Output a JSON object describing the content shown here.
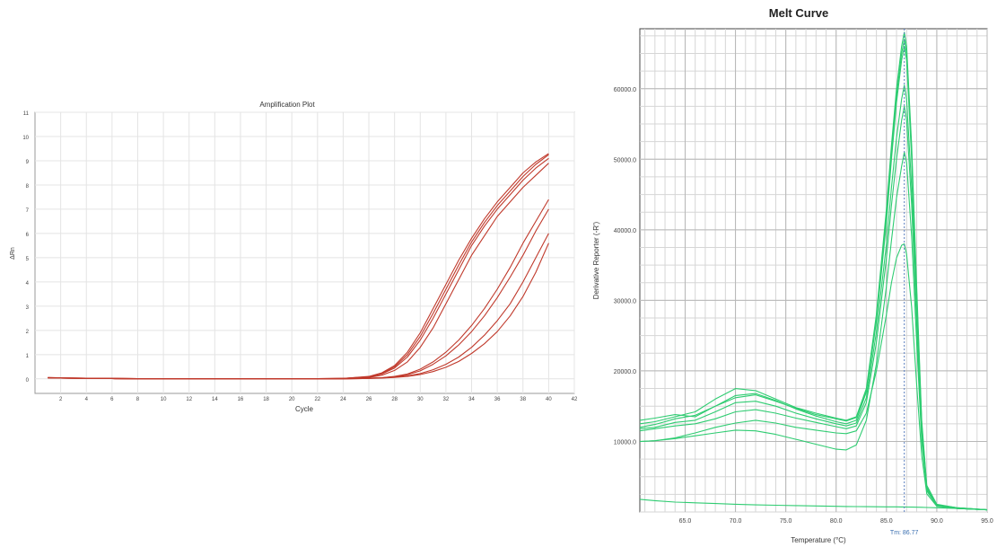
{
  "chart_data": [
    {
      "type": "line",
      "title": "Amplification Plot",
      "xlabel": "Cycle",
      "ylabel": "ΔRn",
      "xlim": [
        0,
        42
      ],
      "ylim": [
        -0.6,
        11
      ],
      "xticks": [
        2,
        4,
        6,
        8,
        10,
        12,
        14,
        16,
        18,
        20,
        22,
        24,
        26,
        28,
        30,
        32,
        34,
        36,
        38,
        40,
        42
      ],
      "yticks": [
        0,
        1,
        2,
        3,
        4,
        5,
        6,
        7,
        8,
        9,
        10,
        11
      ],
      "grid": true,
      "line_color": "#c0392b",
      "x": [
        1,
        2,
        4,
        6,
        8,
        10,
        12,
        14,
        16,
        18,
        20,
        22,
        24,
        26,
        27,
        28,
        29,
        30,
        31,
        32,
        33,
        34,
        35,
        36,
        37,
        38,
        39,
        40
      ],
      "series": [
        {
          "values": [
            0.05,
            0.04,
            0.03,
            0.02,
            0.01,
            0.0,
            0.0,
            0.0,
            0.0,
            0.0,
            0.0,
            0.01,
            0.02,
            0.1,
            0.25,
            0.55,
            1.1,
            1.9,
            2.9,
            3.9,
            4.9,
            5.8,
            6.6,
            7.3,
            7.9,
            8.5,
            8.95,
            9.3
          ]
        },
        {
          "values": [
            0.06,
            0.04,
            0.03,
            0.02,
            0.01,
            0.0,
            0.0,
            0.0,
            0.0,
            0.0,
            0.0,
            0.01,
            0.02,
            0.08,
            0.2,
            0.45,
            0.9,
            1.6,
            2.5,
            3.5,
            4.5,
            5.5,
            6.3,
            7.0,
            7.6,
            8.2,
            8.7,
            9.1
          ]
        },
        {
          "values": [
            0.04,
            0.03,
            0.02,
            0.02,
            0.01,
            0.0,
            0.0,
            0.0,
            0.0,
            0.0,
            0.0,
            0.0,
            0.02,
            0.06,
            0.15,
            0.35,
            0.7,
            1.3,
            2.1,
            3.1,
            4.1,
            5.1,
            5.9,
            6.7,
            7.3,
            7.9,
            8.4,
            8.9
          ]
        },
        {
          "values": [
            0.05,
            0.04,
            0.03,
            0.02,
            0.01,
            0.0,
            0.0,
            0.0,
            0.0,
            0.0,
            0.0,
            0.01,
            0.02,
            0.09,
            0.22,
            0.5,
            1.0,
            1.75,
            2.7,
            3.7,
            4.7,
            5.65,
            6.45,
            7.15,
            7.75,
            8.35,
            8.85,
            9.25
          ]
        },
        {
          "values": [
            0.05,
            0.03,
            0.02,
            0.01,
            0.0,
            0.0,
            0.0,
            0.0,
            0.0,
            0.0,
            0.0,
            0.0,
            0.01,
            0.03,
            0.05,
            0.1,
            0.2,
            0.4,
            0.7,
            1.1,
            1.6,
            2.2,
            2.9,
            3.7,
            4.6,
            5.6,
            6.5,
            7.4
          ]
        },
        {
          "values": [
            0.05,
            0.03,
            0.02,
            0.01,
            0.0,
            0.0,
            0.0,
            0.0,
            0.0,
            0.0,
            0.0,
            0.0,
            0.01,
            0.03,
            0.05,
            0.09,
            0.17,
            0.33,
            0.6,
            0.95,
            1.4,
            1.95,
            2.6,
            3.35,
            4.2,
            5.1,
            6.1,
            7.0
          ]
        },
        {
          "values": [
            0.04,
            0.03,
            0.02,
            0.01,
            0.0,
            0.0,
            0.0,
            0.0,
            0.0,
            0.0,
            0.0,
            0.0,
            0.0,
            0.02,
            0.04,
            0.07,
            0.12,
            0.22,
            0.38,
            0.6,
            0.9,
            1.3,
            1.8,
            2.4,
            3.1,
            4.0,
            5.0,
            6.0
          ]
        },
        {
          "values": [
            0.04,
            0.03,
            0.02,
            0.01,
            0.0,
            0.0,
            0.0,
            0.0,
            0.0,
            0.0,
            0.0,
            0.0,
            0.0,
            0.02,
            0.03,
            0.06,
            0.1,
            0.18,
            0.3,
            0.48,
            0.72,
            1.05,
            1.45,
            1.95,
            2.6,
            3.4,
            4.4,
            5.6
          ]
        }
      ]
    },
    {
      "type": "line",
      "title": "Melt Curve",
      "xlabel": "Temperature (°C)",
      "ylabel": "Derivative Reporter (-R')",
      "xlim": [
        60.5,
        95
      ],
      "ylim": [
        0,
        68500
      ],
      "xticks": [
        65,
        70,
        75,
        80,
        85,
        90,
        95
      ],
      "xtick_labels": [
        "65.0",
        "70.0",
        "75.0",
        "80.0",
        "85.0",
        "90.0",
        "95.0"
      ],
      "yticks": [
        10000,
        20000,
        30000,
        40000,
        50000,
        60000
      ],
      "ytick_labels": [
        "10000.0",
        "20000.0",
        "30000.0",
        "40000.0",
        "50000.0",
        "60000.0"
      ],
      "grid": true,
      "line_color": "#2ecc71",
      "tm_label": "Tm: 86.77",
      "tm_value": 86.77,
      "x": [
        60.5,
        62,
        64,
        66,
        68,
        70,
        72,
        74,
        76,
        78,
        80,
        81,
        82,
        83,
        84,
        85,
        85.5,
        86,
        86.5,
        86.77,
        87,
        87.5,
        88,
        88.5,
        89,
        90,
        92,
        95
      ],
      "series": [
        {
          "values": [
            12000,
            12400,
            13200,
            13700,
            15000,
            16500,
            16800,
            15800,
            14600,
            13600,
            12800,
            12500,
            13000,
            17000,
            27000,
            41000,
            50000,
            58000,
            64000,
            66000,
            64000,
            50000,
            30000,
            12000,
            3500,
            1000,
            600,
            300
          ]
        },
        {
          "values": [
            12500,
            12800,
            13500,
            14200,
            16000,
            17500,
            17200,
            16000,
            14800,
            14000,
            13300,
            13000,
            13500,
            17500,
            28000,
            43000,
            52000,
            60000,
            66000,
            68000,
            66000,
            52000,
            32000,
            13000,
            3800,
            1100,
            600,
            300
          ]
        },
        {
          "values": [
            13000,
            13300,
            13800,
            13500,
            15000,
            16200,
            16600,
            15700,
            14700,
            13800,
            13200,
            12900,
            13400,
            17200,
            27500,
            42000,
            51000,
            59000,
            65000,
            67000,
            65000,
            51000,
            31000,
            12500,
            3600,
            1000,
            600,
            300
          ]
        },
        {
          "values": [
            11800,
            12000,
            12700,
            13000,
            14200,
            15500,
            15700,
            15000,
            14000,
            13200,
            12500,
            12200,
            12600,
            16200,
            25500,
            38000,
            46000,
            53000,
            58500,
            60500,
            58500,
            46000,
            28000,
            11500,
            3300,
            900,
            500,
            300
          ]
        },
        {
          "values": [
            11500,
            11800,
            12200,
            12500,
            13200,
            14200,
            14500,
            14000,
            13300,
            12700,
            12100,
            11800,
            12200,
            15500,
            24000,
            36000,
            43500,
            50000,
            55500,
            57500,
            55500,
            43500,
            26500,
            11000,
            3200,
            900,
            500,
            300
          ]
        },
        {
          "values": [
            10000,
            10100,
            10500,
            11200,
            12000,
            12600,
            13000,
            12600,
            12000,
            11600,
            11200,
            11100,
            11500,
            14000,
            20000,
            28000,
            32500,
            36000,
            37800,
            38000,
            36500,
            29000,
            18000,
            8000,
            2600,
            800,
            500,
            300
          ]
        },
        {
          "values": [
            10000,
            10100,
            10400,
            10800,
            11200,
            11600,
            11500,
            11000,
            10300,
            9600,
            8900,
            8800,
            9500,
            13000,
            21000,
            32000,
            38500,
            44500,
            49000,
            51000,
            49500,
            39000,
            24000,
            10000,
            3000,
            900,
            500,
            300
          ]
        },
        {
          "values": [
            1800,
            1600,
            1400,
            1300,
            1200,
            1100,
            1000,
            950,
            900,
            850,
            800,
            780,
            760,
            750,
            740,
            730,
            725,
            720,
            715,
            710,
            700,
            690,
            680,
            660,
            640,
            600,
            500,
            300
          ]
        }
      ]
    }
  ]
}
